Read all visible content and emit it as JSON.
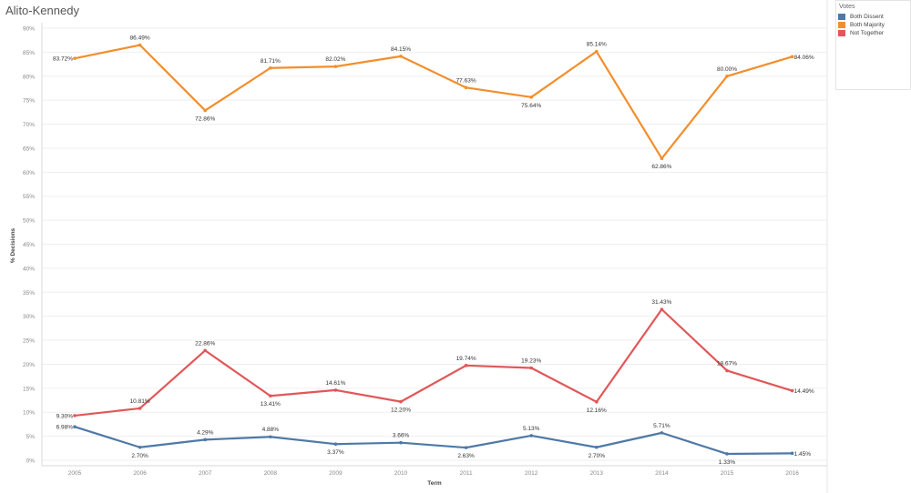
{
  "title": "Alito-Kennedy",
  "legend": {
    "title": "Votes",
    "items": [
      {
        "label": "Both Dissent",
        "color": "#4e79a7"
      },
      {
        "label": "Both Majority",
        "color": "#f28e2b"
      },
      {
        "label": "Not Together",
        "color": "#e15759"
      }
    ]
  },
  "chart_data": {
    "type": "line",
    "title": "Alito-Kennedy",
    "xlabel": "Term",
    "ylabel": "% Decisions",
    "categories": [
      "2005",
      "2006",
      "2007",
      "2008",
      "2009",
      "2010",
      "2011",
      "2012",
      "2013",
      "2014",
      "2015",
      "2016"
    ],
    "yticks": [
      "0%",
      "5%",
      "10%",
      "15%",
      "20%",
      "25%",
      "30%",
      "35%",
      "40%",
      "45%",
      "50%",
      "55%",
      "60%",
      "65%",
      "70%",
      "75%",
      "80%",
      "85%",
      "90%"
    ],
    "ylim": [
      0,
      90
    ],
    "grid": true,
    "legend_position": "top-right",
    "series": [
      {
        "name": "Both Dissent",
        "color": "#4e79a7",
        "values": [
          6.98,
          2.7,
          4.29,
          4.88,
          3.37,
          3.66,
          2.63,
          5.13,
          2.7,
          5.71,
          1.33,
          1.45
        ],
        "labels": [
          "6.98%",
          "2.70%",
          "4.29%",
          "4.88%",
          "3.37%",
          "3.66%",
          "2.63%",
          "5.13%",
          "2.70%",
          "5.71%",
          "1.33%",
          "1.45%"
        ]
      },
      {
        "name": "Both Majority",
        "color": "#f28e2b",
        "values": [
          83.72,
          86.49,
          72.86,
          81.71,
          82.02,
          84.15,
          77.63,
          75.64,
          85.14,
          62.86,
          80.0,
          84.06
        ],
        "labels": [
          "83.72%",
          "86.49%",
          "72.86%",
          "81.71%",
          "82.02%",
          "84.15%",
          "77.63%",
          "75.64%",
          "85.14%",
          "62.86%",
          "80.00%",
          "84.06%"
        ]
      },
      {
        "name": "Not Together",
        "color": "#e15759",
        "values": [
          9.3,
          10.81,
          22.86,
          13.41,
          14.61,
          12.2,
          19.74,
          19.23,
          12.16,
          31.43,
          18.67,
          14.49
        ],
        "labels": [
          "9.30%",
          "10.81%",
          "22.86%",
          "13.41%",
          "14.61%",
          "12.20%",
          "19.74%",
          "19.23%",
          "12.16%",
          "31.43%",
          "18.67%",
          "14.49%"
        ]
      }
    ]
  }
}
